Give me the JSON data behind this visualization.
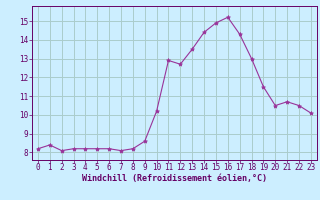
{
  "x": [
    0,
    1,
    2,
    3,
    4,
    5,
    6,
    7,
    8,
    9,
    10,
    11,
    12,
    13,
    14,
    15,
    16,
    17,
    18,
    19,
    20,
    21,
    22,
    23
  ],
  "y": [
    8.2,
    8.4,
    8.1,
    8.2,
    8.2,
    8.2,
    8.2,
    8.1,
    8.2,
    8.6,
    10.2,
    12.9,
    12.7,
    13.5,
    14.4,
    14.9,
    15.2,
    14.3,
    13.0,
    11.5,
    10.5,
    10.7,
    10.5,
    10.1
  ],
  "line_color": "#993399",
  "marker": "*",
  "marker_size": 3,
  "bg_color": "#cceeff",
  "grid_color": "#aacccc",
  "xlabel": "Windchill (Refroidissement éolien,°C)",
  "xlabel_color": "#660066",
  "tick_color": "#660066",
  "spine_color": "#660066",
  "ylim": [
    7.6,
    15.8
  ],
  "xlim": [
    -0.5,
    23.5
  ],
  "yticks": [
    8,
    9,
    10,
    11,
    12,
    13,
    14,
    15
  ],
  "xticks": [
    0,
    1,
    2,
    3,
    4,
    5,
    6,
    7,
    8,
    9,
    10,
    11,
    12,
    13,
    14,
    15,
    16,
    17,
    18,
    19,
    20,
    21,
    22,
    23
  ],
  "tick_fontsize": 5.5,
  "xlabel_fontsize": 6.0
}
